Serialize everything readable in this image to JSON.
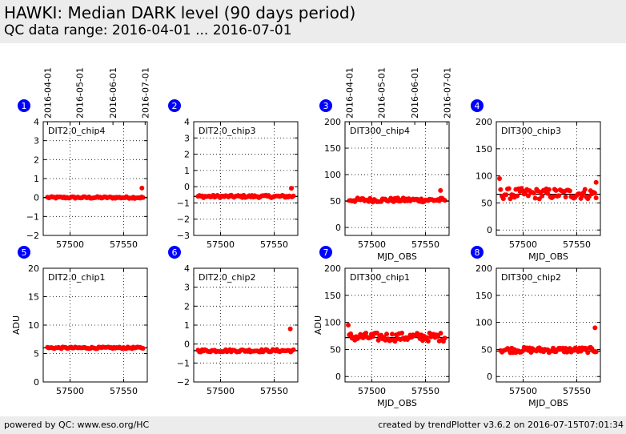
{
  "header": {
    "title": "HAWKI: Median DARK level (90 days period)",
    "subtitle": "QC data range: 2016-04-01 ... 2016-07-01"
  },
  "footer": {
    "left": "powered by QC: www.eso.org/HC",
    "right": "created by trendPlotter v3.6.2 on 2016-07-15T07:01:34"
  },
  "colors": {
    "marker": "#ff0000",
    "badge": "#0000ff",
    "header_bg": "#ececec"
  },
  "chart_data": [
    {
      "type": "scatter",
      "number": "1",
      "label": "DIT2.0_chip4",
      "xlim": [
        57475,
        57572
      ],
      "ylim": [
        -2,
        4
      ],
      "yticks": [
        -2,
        -1,
        0,
        1,
        2,
        3,
        4
      ],
      "ytick_labels": [
        "−2",
        "−1",
        "0",
        "1",
        "2",
        "3",
        "4"
      ],
      "ylabel": "",
      "xlabel": "",
      "xticks": [
        57500,
        57550
      ],
      "xtick_labels": [
        "57500",
        "57550"
      ],
      "hline": 0.0,
      "base": 0.0,
      "spread": 0.05,
      "outliers": [
        [
          57567,
          0.5
        ]
      ],
      "date_ticks": [
        57479,
        57509,
        57540,
        57570
      ],
      "date_labels": [
        "2016-04-01",
        "2016-05-01",
        "2016-06-01",
        "2016-07-01"
      ]
    },
    {
      "type": "scatter",
      "number": "2",
      "label": "DIT2.0_chip3",
      "xlim": [
        57475,
        57572
      ],
      "ylim": [
        -3,
        4
      ],
      "yticks": [
        -3,
        -2,
        -1,
        0,
        1,
        2,
        3,
        4
      ],
      "ytick_labels": [
        "−3",
        "−2",
        "−1",
        "0",
        "1",
        "2",
        "3",
        "4"
      ],
      "ylabel": "",
      "xlabel": "",
      "xticks": [
        57500,
        57550
      ],
      "xtick_labels": [
        "57500",
        "57550"
      ],
      "hline": -0.6,
      "base": -0.6,
      "spread": 0.08,
      "outliers": [
        [
          57566,
          -0.1
        ]
      ]
    },
    {
      "type": "scatter",
      "number": "3",
      "label": "DIT300_chip4",
      "xlim": [
        57475,
        57572
      ],
      "ylim": [
        -15,
        200
      ],
      "yticks": [
        0,
        50,
        100,
        150,
        200
      ],
      "ytick_labels": [
        "0",
        "50",
        "100",
        "150",
        "200"
      ],
      "ylabel": "",
      "xlabel": "MJD_OBS",
      "xticks": [
        57500,
        57550
      ],
      "xtick_labels": [
        "57500",
        "57550"
      ],
      "hline": 50,
      "base": 52,
      "spread": 4,
      "outliers": [
        [
          57564,
          70
        ]
      ],
      "date_ticks": [
        57479,
        57509,
        57540,
        57570
      ],
      "date_labels": [
        "2016-04-01",
        "2016-05-01",
        "2016-06-01",
        "2016-07-01"
      ]
    },
    {
      "type": "scatter",
      "number": "4",
      "label": "DIT300_chip3",
      "xlim": [
        57475,
        57572
      ],
      "ylim": [
        -10,
        200
      ],
      "yticks": [
        0,
        50,
        100,
        150,
        200
      ],
      "ytick_labels": [
        "0",
        "50",
        "100",
        "150",
        "200"
      ],
      "ylabel": "",
      "xlabel": "MJD_OBS",
      "xticks": [
        57500,
        57550
      ],
      "xtick_labels": [
        "57500",
        "57550"
      ],
      "hline": 66,
      "base": 67,
      "spread": 10,
      "outliers": [
        [
          57478,
          95
        ],
        [
          57568,
          88
        ]
      ]
    },
    {
      "type": "scatter",
      "number": "5",
      "label": "DIT2.0_chip1",
      "xlim": [
        57475,
        57572
      ],
      "ylim": [
        0,
        20
      ],
      "yticks": [
        0,
        5,
        10,
        15,
        20
      ],
      "ytick_labels": [
        "0",
        "5",
        "10",
        "15",
        "20"
      ],
      "ylabel": "ADU",
      "xlabel": "",
      "xticks": [
        57500,
        57550
      ],
      "xtick_labels": [
        "57500",
        "57550"
      ],
      "hline": 6.0,
      "base": 6.0,
      "spread": 0.15,
      "outliers": []
    },
    {
      "type": "scatter",
      "number": "6",
      "label": "DIT2.0_chip2",
      "xlim": [
        57475,
        57572
      ],
      "ylim": [
        -2,
        4
      ],
      "yticks": [
        -2,
        -1,
        0,
        1,
        2,
        3,
        4
      ],
      "ytick_labels": [
        "−2",
        "−1",
        "0",
        "1",
        "2",
        "3",
        "4"
      ],
      "ylabel": "",
      "xlabel": "",
      "xticks": [
        57500,
        57550
      ],
      "xtick_labels": [
        "57500",
        "57550"
      ],
      "hline": -0.35,
      "base": -0.35,
      "spread": 0.07,
      "outliers": [
        [
          57565,
          0.8
        ]
      ]
    },
    {
      "type": "scatter",
      "number": "7",
      "label": "DIT300_chip1",
      "xlim": [
        57475,
        57572
      ],
      "ylim": [
        -10,
        200
      ],
      "yticks": [
        0,
        50,
        100,
        150,
        200
      ],
      "ytick_labels": [
        "0",
        "50",
        "100",
        "150",
        "200"
      ],
      "ylabel": "ADU",
      "xlabel": "MJD_OBS",
      "xticks": [
        57500,
        57550
      ],
      "xtick_labels": [
        "57500",
        "57550"
      ],
      "hline": 72,
      "base": 73,
      "spread": 8,
      "outliers": [
        [
          57478,
          95
        ]
      ]
    },
    {
      "type": "scatter",
      "number": "8",
      "label": "DIT300_chip2",
      "xlim": [
        57475,
        57572
      ],
      "ylim": [
        -10,
        200
      ],
      "yticks": [
        0,
        50,
        100,
        150,
        200
      ],
      "ytick_labels": [
        "0",
        "50",
        "100",
        "150",
        "200"
      ],
      "ylabel": "",
      "xlabel": "MJD_OBS",
      "xticks": [
        57500,
        57550
      ],
      "xtick_labels": [
        "57500",
        "57550"
      ],
      "hline": 47,
      "base": 49,
      "spread": 5,
      "outliers": [
        [
          57567,
          90
        ]
      ]
    }
  ]
}
